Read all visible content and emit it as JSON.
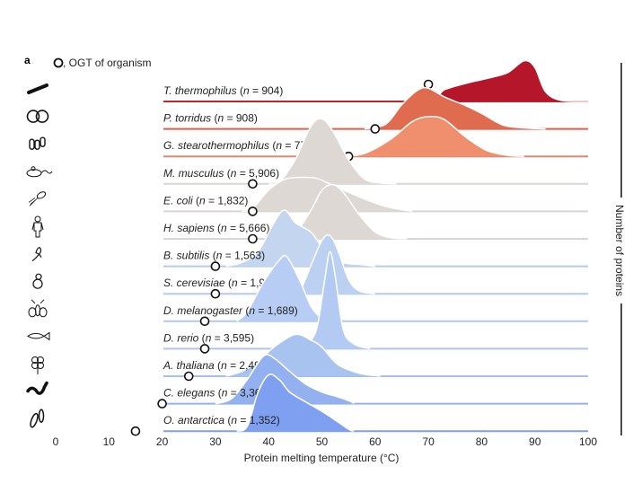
{
  "panel_label": "a",
  "legend": {
    "marker": "open-circle",
    "text": ", OGT of organism"
  },
  "chart_data": {
    "type": "ridgeline",
    "xlabel": "Protein melting temperature (°C)",
    "ylabel": "Number of proteins",
    "xlim": [
      0,
      100
    ],
    "x_ticks": [
      "0",
      "10",
      "20",
      "30",
      "40",
      "50",
      "60",
      "70",
      "80",
      "90",
      "100"
    ],
    "grid": false,
    "series": [
      {
        "organism": "T. thermophilus",
        "n": "904",
        "icon": "rod-bacterium-icon",
        "ogt": 70,
        "fill": "#b5162a",
        "line": "#c0272d",
        "density": [
          [
            71.5,
            0
          ],
          [
            72.5,
            0.1
          ],
          [
            74,
            0.14
          ],
          [
            78,
            0.2
          ],
          [
            82,
            0.25
          ],
          [
            85,
            0.3
          ],
          [
            88,
            0.42
          ],
          [
            90,
            0.35
          ],
          [
            92,
            0.1
          ],
          [
            95,
            0.01
          ],
          [
            100,
            0
          ]
        ]
      },
      {
        "organism": "P. torridus",
        "n": "908",
        "icon": "coccus-pair-icon",
        "ogt": 60,
        "fill": "#e06c50",
        "line": "#d9634a",
        "density": [
          [
            58,
            0
          ],
          [
            62,
            0.05
          ],
          [
            65,
            0.25
          ],
          [
            68,
            0.4
          ],
          [
            70,
            0.42
          ],
          [
            73,
            0.33
          ],
          [
            77,
            0.24
          ],
          [
            80,
            0.16
          ],
          [
            84,
            0.04
          ],
          [
            88,
            0.01
          ],
          [
            92,
            0
          ]
        ]
      },
      {
        "organism": "G. stearothermophilus",
        "n": "776",
        "icon": "bacilli-icon",
        "ogt": 55,
        "fill": "#ef8f6e",
        "line": "#e8866a",
        "density": [
          [
            54,
            0
          ],
          [
            58,
            0.03
          ],
          [
            63,
            0.18
          ],
          [
            67,
            0.36
          ],
          [
            70,
            0.41
          ],
          [
            73,
            0.38
          ],
          [
            77,
            0.2
          ],
          [
            81,
            0.06
          ],
          [
            85,
            0.01
          ],
          [
            88,
            0
          ]
        ]
      },
      {
        "organism": "M. musculus",
        "n": "5,906",
        "icon": "mouse-icon",
        "ogt": 37,
        "fill": "#ddd8d3",
        "line": "#d8d5d2",
        "density": [
          [
            40,
            0
          ],
          [
            42,
            0.02
          ],
          [
            45,
            0.25
          ],
          [
            48,
            0.6
          ],
          [
            50,
            0.67
          ],
          [
            52,
            0.55
          ],
          [
            55,
            0.25
          ],
          [
            58,
            0.05
          ],
          [
            61,
            0.01
          ],
          [
            64,
            0
          ]
        ]
      },
      {
        "organism": "E. coli",
        "n": "1,832",
        "icon": "flagellated-bacterium-icon",
        "ogt": 37,
        "fill": "#ddd8d3",
        "line": "#d8d5d2",
        "density": [
          [
            35,
            0
          ],
          [
            37,
            0.03
          ],
          [
            40,
            0.22
          ],
          [
            43,
            0.33
          ],
          [
            46,
            0.35
          ],
          [
            49,
            0.34
          ],
          [
            52,
            0.27
          ],
          [
            57,
            0.15
          ],
          [
            62,
            0.05
          ],
          [
            67,
            0
          ]
        ]
      },
      {
        "organism": "H. sapiens",
        "n": "5,666",
        "icon": "human-icon",
        "ogt": 37,
        "fill": "#ddd8d3",
        "line": "#d8d5d2",
        "density": [
          [
            43,
            0
          ],
          [
            45,
            0.05
          ],
          [
            48,
            0.3
          ],
          [
            50,
            0.5
          ],
          [
            52,
            0.56
          ],
          [
            54,
            0.48
          ],
          [
            57,
            0.25
          ],
          [
            60,
            0.07
          ],
          [
            63,
            0.01
          ],
          [
            66,
            0
          ]
        ]
      },
      {
        "organism": "B. subtilis",
        "n": "1,563",
        "icon": "bacillus-chain-icon",
        "ogt": 30,
        "fill": "#c3d5ef",
        "line": "#b6caea",
        "density": [
          [
            32,
            0
          ],
          [
            35,
            0.04
          ],
          [
            38,
            0.15
          ],
          [
            41,
            0.45
          ],
          [
            43,
            0.58
          ],
          [
            45,
            0.45
          ],
          [
            48,
            0.35
          ],
          [
            50,
            0.2
          ],
          [
            53,
            0.05
          ],
          [
            57,
            0.02
          ],
          [
            60,
            0
          ]
        ]
      },
      {
        "organism": "S. cerevisiae",
        "n": "1,949",
        "icon": "yeast-icon",
        "ogt": 30,
        "fill": "#bcd1f1",
        "line": "#b6caea",
        "density": [
          [
            44,
            0
          ],
          [
            46,
            0.05
          ],
          [
            48,
            0.3
          ],
          [
            50,
            0.55
          ],
          [
            51.5,
            0.6
          ],
          [
            53,
            0.45
          ],
          [
            55,
            0.15
          ],
          [
            57,
            0.03
          ],
          [
            60,
            0
          ]
        ]
      },
      {
        "organism": "D. melanogaster",
        "n": "1,689",
        "icon": "fly-icon",
        "ogt": 28,
        "fill": "#b7cdf3",
        "line": "#b2c8ee",
        "density": [
          [
            34,
            0
          ],
          [
            36,
            0.1
          ],
          [
            39,
            0.4
          ],
          [
            42,
            0.63
          ],
          [
            43.5,
            0.66
          ],
          [
            46,
            0.4
          ],
          [
            48,
            0.15
          ],
          [
            50,
            0.03
          ],
          [
            52,
            0
          ]
        ]
      },
      {
        "organism": "D. rerio",
        "n": "3,595",
        "icon": "fish-icon",
        "ogt": 28,
        "fill": "#b3cbf3",
        "line": "#adc5f0",
        "density": [
          [
            45,
            0
          ],
          [
            47,
            0.04
          ],
          [
            49,
            0.2
          ],
          [
            50.5,
            0.7
          ],
          [
            51.5,
            1.0
          ],
          [
            52.5,
            0.75
          ],
          [
            54,
            0.2
          ],
          [
            56,
            0.05
          ],
          [
            59,
            0
          ]
        ]
      },
      {
        "organism": "A. thaliana",
        "n": "2,493",
        "icon": "flower-icon",
        "ogt": 25,
        "fill": "#a9c3f1",
        "line": "#a5bff0",
        "density": [
          [
            32,
            0
          ],
          [
            35,
            0.05
          ],
          [
            38,
            0.15
          ],
          [
            41,
            0.3
          ],
          [
            45,
            0.43
          ],
          [
            48,
            0.37
          ],
          [
            50,
            0.3
          ],
          [
            53,
            0.12
          ],
          [
            57,
            0.03
          ],
          [
            61,
            0
          ]
        ]
      },
      {
        "organism": "C. elegans",
        "n": "3,366",
        "icon": "worm-icon",
        "ogt": 20,
        "fill": "#93b1ef",
        "line": "#93b1ef",
        "density": [
          [
            30,
            0
          ],
          [
            33,
            0.05
          ],
          [
            36,
            0.25
          ],
          [
            39,
            0.49
          ],
          [
            41,
            0.47
          ],
          [
            44,
            0.33
          ],
          [
            47,
            0.2
          ],
          [
            50,
            0.12
          ],
          [
            53,
            0.07
          ],
          [
            55.5,
            0.02
          ],
          [
            56,
            0
          ]
        ]
      },
      {
        "organism": "O. antarctica",
        "n": "1,352",
        "icon": "diatom-icon",
        "ogt": 15,
        "fill": "#7f9ff0",
        "line": "#7f9ff0",
        "density": [
          [
            34,
            0
          ],
          [
            36,
            0.05
          ],
          [
            38,
            0.4
          ],
          [
            40,
            0.58
          ],
          [
            42,
            0.53
          ],
          [
            44,
            0.4
          ],
          [
            47,
            0.3
          ],
          [
            51,
            0.17
          ],
          [
            55,
            0.02
          ],
          [
            56,
            0
          ]
        ]
      }
    ]
  }
}
